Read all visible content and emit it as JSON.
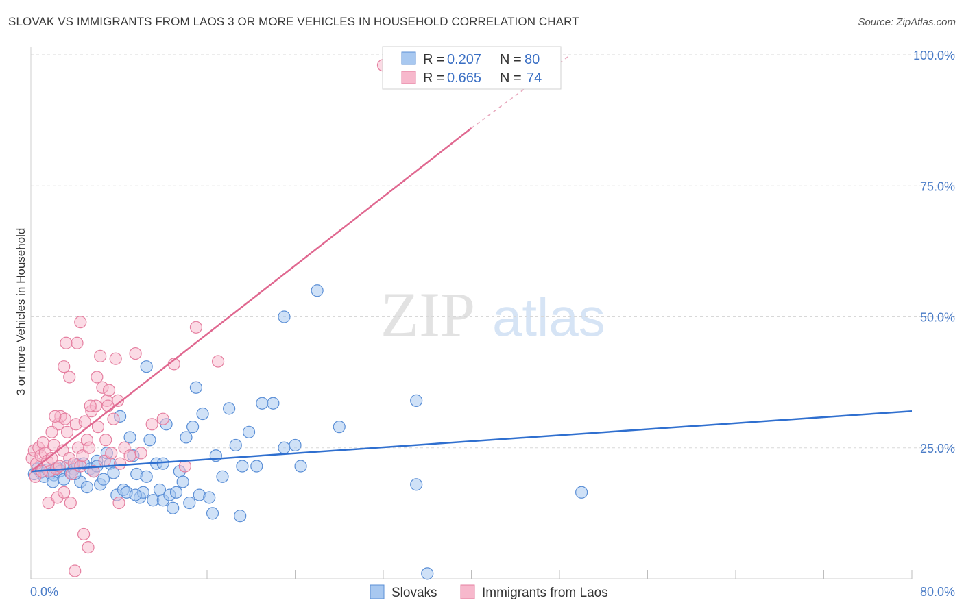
{
  "title": "SLOVAK VS IMMIGRANTS FROM LAOS 3 OR MORE VEHICLES IN HOUSEHOLD CORRELATION CHART",
  "source": "Source: ZipAtlas.com",
  "watermark": {
    "zip": "ZIP",
    "atlas": "atlas"
  },
  "colors": {
    "slovak_fill": "#a8c8f0",
    "slovak_stroke": "#5b8fd6",
    "slovak_line": "#2f6fcf",
    "laos_fill": "#f7b8cc",
    "laos_stroke": "#e57fa0",
    "laos_line": "#e06890",
    "grid": "#d8d8d8",
    "axis_text": "#4a7cc7"
  },
  "legend": {
    "r_label": "R =",
    "n_label": "N =",
    "slovak_r": "0.207",
    "slovak_n": "80",
    "laos_r": "0.665",
    "laos_n": "74"
  },
  "chart_data": {
    "type": "scatter",
    "title": "SLOVAK VS IMMIGRANTS FROM LAOS 3 OR MORE VEHICLES IN HOUSEHOLD CORRELATION CHART",
    "xlabel": "",
    "ylabel": "3 or more Vehicles in Household",
    "xlim": [
      0,
      80
    ],
    "ylim": [
      0,
      100
    ],
    "x_tick_labels": [
      "0.0%",
      "80.0%"
    ],
    "y_tick_labels": [
      "100.0%",
      "75.0%",
      "50.0%",
      "25.0%"
    ],
    "y_ticks": [
      100,
      75,
      50,
      25
    ],
    "grid": true,
    "legend_position": "top-center",
    "series": [
      {
        "name": "Slovaks",
        "r": 0.207,
        "n": 80,
        "trend": {
          "x": [
            0,
            80
          ],
          "y": [
            20.5,
            32.0
          ]
        },
        "points": [
          [
            0.3,
            20.0
          ],
          [
            0.6,
            21.0
          ],
          [
            0.9,
            20.3
          ],
          [
            1.2,
            19.5
          ],
          [
            1.5,
            20.8
          ],
          [
            1.8,
            20.1
          ],
          [
            2.1,
            19.8
          ],
          [
            2.4,
            21.2
          ],
          [
            2.7,
            20.6
          ],
          [
            3.0,
            19.0
          ],
          [
            3.3,
            21.5
          ],
          [
            3.6,
            20.2
          ],
          [
            3.9,
            20.9
          ],
          [
            4.2,
            21.8
          ],
          [
            4.5,
            18.5
          ],
          [
            4.8,
            22.0
          ],
          [
            5.1,
            17.5
          ],
          [
            5.4,
            21.0
          ],
          [
            5.7,
            20.5
          ],
          [
            6.0,
            22.5
          ],
          [
            6.3,
            18.0
          ],
          [
            6.6,
            19.0
          ],
          [
            6.9,
            24.0
          ],
          [
            7.2,
            22.0
          ],
          [
            7.5,
            20.2
          ],
          [
            7.8,
            16.0
          ],
          [
            8.1,
            31.0
          ],
          [
            8.4,
            17.0
          ],
          [
            8.7,
            16.5
          ],
          [
            9.0,
            27.0
          ],
          [
            9.3,
            23.5
          ],
          [
            9.6,
            20.0
          ],
          [
            9.9,
            15.5
          ],
          [
            10.2,
            16.5
          ],
          [
            10.5,
            19.5
          ],
          [
            10.8,
            26.5
          ],
          [
            11.1,
            15.0
          ],
          [
            11.4,
            22.0
          ],
          [
            11.7,
            17.0
          ],
          [
            12.0,
            15.0
          ],
          [
            12.3,
            29.5
          ],
          [
            12.6,
            16.0
          ],
          [
            12.9,
            13.5
          ],
          [
            13.2,
            16.5
          ],
          [
            13.5,
            20.5
          ],
          [
            13.8,
            18.5
          ],
          [
            14.1,
            27.0
          ],
          [
            14.4,
            14.5
          ],
          [
            14.7,
            29.0
          ],
          [
            15.0,
            36.5
          ],
          [
            15.3,
            16.0
          ],
          [
            15.6,
            31.5
          ],
          [
            16.2,
            15.5
          ],
          [
            16.8,
            23.5
          ],
          [
            17.4,
            19.5
          ],
          [
            18.0,
            32.5
          ],
          [
            18.6,
            25.5
          ],
          [
            19.2,
            21.5
          ],
          [
            19.8,
            28.0
          ],
          [
            20.5,
            21.5
          ],
          [
            21.0,
            33.5
          ],
          [
            22.0,
            33.5
          ],
          [
            23.0,
            25.0
          ],
          [
            24.0,
            25.5
          ],
          [
            24.5,
            21.5
          ],
          [
            28.0,
            29.0
          ],
          [
            35.0,
            34.0
          ],
          [
            35.0,
            18.0
          ],
          [
            50.0,
            16.5
          ],
          [
            10.5,
            40.5
          ],
          [
            16.5,
            12.5
          ],
          [
            23.0,
            50.0
          ],
          [
            26.0,
            55.0
          ],
          [
            36.0,
            1.0
          ],
          [
            19.0,
            12.0
          ],
          [
            9.5,
            16.0
          ],
          [
            12.0,
            22.0
          ],
          [
            6.0,
            21.5
          ],
          [
            4.0,
            20.0
          ],
          [
            2.0,
            18.5
          ]
        ]
      },
      {
        "name": "Immigrants from Laos",
        "r": 0.665,
        "n": 74,
        "trend": {
          "x": [
            0,
            40
          ],
          "y": [
            20.5,
            86.0
          ]
        },
        "trend_extension": {
          "x": [
            40,
            49
          ],
          "y": [
            86.0,
            100.0
          ]
        },
        "points": [
          [
            0.1,
            23.0
          ],
          [
            0.3,
            24.5
          ],
          [
            0.5,
            22.0
          ],
          [
            0.7,
            25.0
          ],
          [
            0.9,
            23.5
          ],
          [
            1.1,
            26.0
          ],
          [
            1.3,
            24.0
          ],
          [
            1.5,
            22.5
          ],
          [
            1.7,
            20.5
          ],
          [
            1.9,
            23.0
          ],
          [
            2.1,
            25.5
          ],
          [
            2.3,
            21.0
          ],
          [
            2.5,
            29.5
          ],
          [
            2.7,
            31.0
          ],
          [
            2.9,
            24.5
          ],
          [
            3.1,
            30.5
          ],
          [
            3.3,
            28.0
          ],
          [
            3.5,
            23.0
          ],
          [
            3.7,
            20.0
          ],
          [
            3.9,
            22.0
          ],
          [
            4.1,
            29.5
          ],
          [
            4.3,
            25.0
          ],
          [
            4.5,
            21.5
          ],
          [
            4.7,
            23.5
          ],
          [
            4.9,
            30.0
          ],
          [
            5.1,
            26.5
          ],
          [
            5.3,
            25.0
          ],
          [
            5.5,
            32.0
          ],
          [
            5.7,
            20.5
          ],
          [
            5.9,
            33.0
          ],
          [
            6.1,
            29.0
          ],
          [
            6.3,
            42.5
          ],
          [
            6.5,
            36.5
          ],
          [
            6.7,
            22.5
          ],
          [
            6.9,
            34.0
          ],
          [
            7.1,
            36.0
          ],
          [
            7.3,
            24.0
          ],
          [
            7.5,
            30.5
          ],
          [
            7.7,
            42.0
          ],
          [
            7.9,
            34.0
          ],
          [
            8.1,
            22.0
          ],
          [
            8.5,
            25.0
          ],
          [
            9.0,
            23.5
          ],
          [
            9.5,
            43.0
          ],
          [
            10.0,
            24.0
          ],
          [
            11.0,
            29.5
          ],
          [
            12.0,
            30.5
          ],
          [
            13.0,
            41.0
          ],
          [
            14.0,
            21.5
          ],
          [
            15.0,
            48.0
          ],
          [
            17.0,
            41.5
          ],
          [
            3.0,
            40.5
          ],
          [
            3.5,
            38.5
          ],
          [
            4.2,
            45.0
          ],
          [
            4.5,
            49.0
          ],
          [
            3.2,
            45.0
          ],
          [
            1.6,
            14.5
          ],
          [
            2.4,
            15.5
          ],
          [
            3.0,
            16.5
          ],
          [
            4.8,
            8.5
          ],
          [
            5.2,
            6.0
          ],
          [
            4.0,
            1.5
          ],
          [
            5.4,
            33.0
          ],
          [
            8.0,
            14.5
          ],
          [
            2.2,
            31.0
          ],
          [
            1.9,
            28.0
          ],
          [
            6.0,
            38.5
          ],
          [
            7.0,
            33.0
          ],
          [
            0.4,
            19.5
          ],
          [
            1.0,
            20.5
          ],
          [
            2.6,
            21.5
          ],
          [
            3.6,
            14.5
          ],
          [
            32.0,
            98.0
          ],
          [
            6.8,
            26.5
          ]
        ]
      }
    ]
  }
}
